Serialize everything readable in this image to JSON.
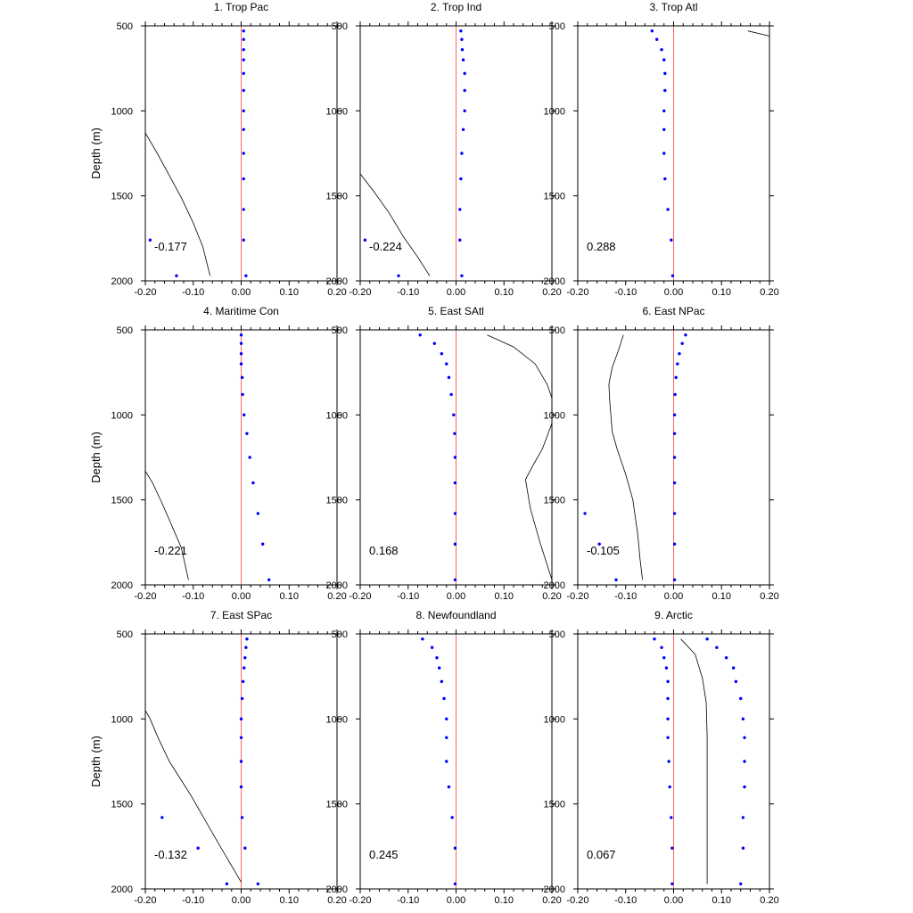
{
  "chart_data": {
    "type": "scatter",
    "ylabel": "Depth (m)",
    "x_ticks": [
      "-0.20",
      "-0.10",
      "0.00",
      "0.10",
      "0.20"
    ],
    "y_ticks": [
      "500",
      "1000",
      "1500",
      "2000"
    ],
    "xlim": [
      -0.2,
      0.2
    ],
    "ylim": [
      500,
      2000
    ],
    "y_inverted": true,
    "colors": {
      "points": "#0000ff",
      "zero_line": "#ff6666",
      "curve": "#000000"
    },
    "panels": [
      {
        "title": "1. Trop Pac",
        "corr": "-0.177",
        "points": [
          [
            0.005,
            530
          ],
          [
            0.005,
            580
          ],
          [
            0.005,
            640
          ],
          [
            0.005,
            700
          ],
          [
            0.005,
            780
          ],
          [
            0.005,
            880
          ],
          [
            0.005,
            1000
          ],
          [
            0.005,
            1110
          ],
          [
            0.005,
            1250
          ],
          [
            0.005,
            1400
          ],
          [
            0.005,
            1580
          ],
          [
            0.005,
            1760
          ],
          [
            0.01,
            1970
          ],
          [
            -0.19,
            1760
          ],
          [
            -0.135,
            1970
          ]
        ],
        "curve": [
          [
            -0.2,
            1130
          ],
          [
            -0.175,
            1250
          ],
          [
            -0.15,
            1380
          ],
          [
            -0.125,
            1510
          ],
          [
            -0.1,
            1660
          ],
          [
            -0.08,
            1800
          ],
          [
            -0.065,
            1970
          ]
        ]
      },
      {
        "title": "2. Trop Ind",
        "corr": "-0.224",
        "points": [
          [
            0.01,
            530
          ],
          [
            0.012,
            580
          ],
          [
            0.013,
            640
          ],
          [
            0.015,
            700
          ],
          [
            0.018,
            780
          ],
          [
            0.018,
            880
          ],
          [
            0.018,
            1000
          ],
          [
            0.015,
            1110
          ],
          [
            0.012,
            1250
          ],
          [
            0.01,
            1400
          ],
          [
            0.008,
            1580
          ],
          [
            0.008,
            1760
          ],
          [
            0.012,
            1970
          ],
          [
            -0.19,
            1760
          ],
          [
            -0.12,
            1970
          ]
        ],
        "curve": [
          [
            -0.2,
            1370
          ],
          [
            -0.17,
            1480
          ],
          [
            -0.14,
            1600
          ],
          [
            -0.11,
            1740
          ],
          [
            -0.08,
            1860
          ],
          [
            -0.055,
            1970
          ]
        ]
      },
      {
        "title": "3. Trop Atl",
        "corr": "0.288",
        "points": [
          [
            -0.045,
            530
          ],
          [
            -0.035,
            580
          ],
          [
            -0.025,
            640
          ],
          [
            -0.02,
            700
          ],
          [
            -0.018,
            780
          ],
          [
            -0.018,
            880
          ],
          [
            -0.02,
            1000
          ],
          [
            -0.02,
            1110
          ],
          [
            -0.02,
            1250
          ],
          [
            -0.018,
            1400
          ],
          [
            -0.012,
            1580
          ],
          [
            -0.005,
            1760
          ],
          [
            -0.002,
            1970
          ]
        ],
        "curve": [
          [
            0.155,
            530
          ],
          [
            0.2,
            560
          ]
        ]
      },
      {
        "title": "4. Maritime Con",
        "corr": "-0.221",
        "points": [
          [
            0,
            530
          ],
          [
            0,
            580
          ],
          [
            0,
            640
          ],
          [
            0,
            700
          ],
          [
            0.002,
            780
          ],
          [
            0.003,
            880
          ],
          [
            0.006,
            1000
          ],
          [
            0.012,
            1110
          ],
          [
            0.018,
            1250
          ],
          [
            0.025,
            1400
          ],
          [
            0.035,
            1580
          ],
          [
            0.045,
            1760
          ],
          [
            0.058,
            1970
          ]
        ],
        "curve": [
          [
            -0.2,
            1330
          ],
          [
            -0.185,
            1400
          ],
          [
            -0.165,
            1520
          ],
          [
            -0.145,
            1650
          ],
          [
            -0.125,
            1780
          ],
          [
            -0.11,
            1970
          ]
        ]
      },
      {
        "title": "5. East SAtl",
        "corr": "0.168",
        "points": [
          [
            -0.075,
            530
          ],
          [
            -0.045,
            580
          ],
          [
            -0.03,
            640
          ],
          [
            -0.02,
            700
          ],
          [
            -0.015,
            780
          ],
          [
            -0.01,
            880
          ],
          [
            -0.005,
            1000
          ],
          [
            -0.003,
            1110
          ],
          [
            -0.002,
            1250
          ],
          [
            -0.002,
            1400
          ],
          [
            -0.002,
            1580
          ],
          [
            -0.002,
            1760
          ],
          [
            -0.002,
            1970
          ]
        ],
        "curve": [
          [
            0.065,
            530
          ],
          [
            0.12,
            600
          ],
          [
            0.165,
            700
          ],
          [
            0.19,
            820
          ],
          [
            0.2,
            900
          ],
          [
            0.2,
            1050
          ],
          [
            0.18,
            1200
          ],
          [
            0.16,
            1300
          ],
          [
            0.145,
            1380
          ],
          [
            0.155,
            1550
          ],
          [
            0.175,
            1750
          ],
          [
            0.2,
            1970
          ]
        ]
      },
      {
        "title": "6. East NPac",
        "corr": "-0.105",
        "points": [
          [
            0.025,
            530
          ],
          [
            0.018,
            580
          ],
          [
            0.012,
            640
          ],
          [
            0.008,
            700
          ],
          [
            0.005,
            780
          ],
          [
            0.003,
            880
          ],
          [
            0.002,
            1000
          ],
          [
            0.002,
            1110
          ],
          [
            0.002,
            1250
          ],
          [
            0.002,
            1400
          ],
          [
            0.002,
            1580
          ],
          [
            0.002,
            1760
          ],
          [
            0.002,
            1970
          ],
          [
            -0.185,
            1580
          ],
          [
            -0.155,
            1760
          ],
          [
            -0.12,
            1970
          ]
        ],
        "curve": [
          [
            -0.105,
            530
          ],
          [
            -0.115,
            620
          ],
          [
            -0.128,
            720
          ],
          [
            -0.135,
            820
          ],
          [
            -0.133,
            930
          ],
          [
            -0.128,
            1100
          ],
          [
            -0.118,
            1200
          ],
          [
            -0.1,
            1350
          ],
          [
            -0.085,
            1500
          ],
          [
            -0.075,
            1700
          ],
          [
            -0.07,
            1850
          ],
          [
            -0.065,
            1970
          ]
        ]
      },
      {
        "title": "7. East SPac",
        "corr": "-0.132",
        "points": [
          [
            0.012,
            530
          ],
          [
            0.01,
            580
          ],
          [
            0.008,
            640
          ],
          [
            0.006,
            700
          ],
          [
            0.004,
            780
          ],
          [
            0.002,
            880
          ],
          [
            0,
            1000
          ],
          [
            0,
            1110
          ],
          [
            0,
            1250
          ],
          [
            0,
            1400
          ],
          [
            0.002,
            1580
          ],
          [
            0.008,
            1760
          ],
          [
            0.035,
            1970
          ],
          [
            -0.165,
            1580
          ],
          [
            -0.09,
            1760
          ],
          [
            -0.03,
            1970
          ]
        ],
        "curve": [
          [
            -0.2,
            950
          ],
          [
            -0.19,
            1000
          ],
          [
            -0.175,
            1100
          ],
          [
            -0.15,
            1250
          ],
          [
            -0.105,
            1450
          ],
          [
            -0.05,
            1720
          ],
          [
            0,
            1960
          ]
        ]
      },
      {
        "title": "8. Newfoundland",
        "corr": "0.245",
        "points": [
          [
            -0.07,
            530
          ],
          [
            -0.05,
            580
          ],
          [
            -0.04,
            640
          ],
          [
            -0.035,
            700
          ],
          [
            -0.03,
            780
          ],
          [
            -0.025,
            880
          ],
          [
            -0.02,
            1000
          ],
          [
            -0.02,
            1110
          ],
          [
            -0.02,
            1250
          ],
          [
            -0.015,
            1400
          ],
          [
            -0.008,
            1580
          ],
          [
            -0.002,
            1760
          ],
          [
            -0.002,
            1970
          ]
        ]
      },
      {
        "title": "9. Arctic",
        "corr": "0.067",
        "points": [
          [
            -0.04,
            530
          ],
          [
            -0.025,
            580
          ],
          [
            -0.02,
            640
          ],
          [
            -0.015,
            700
          ],
          [
            -0.012,
            780
          ],
          [
            -0.012,
            880
          ],
          [
            -0.012,
            1000
          ],
          [
            -0.012,
            1110
          ],
          [
            -0.01,
            1250
          ],
          [
            -0.008,
            1400
          ],
          [
            -0.005,
            1580
          ],
          [
            -0.003,
            1760
          ],
          [
            -0.003,
            1970
          ],
          [
            0.07,
            530
          ],
          [
            0.09,
            580
          ],
          [
            0.11,
            640
          ],
          [
            0.125,
            700
          ],
          [
            0.13,
            780
          ],
          [
            0.14,
            880
          ],
          [
            0.145,
            1000
          ],
          [
            0.148,
            1110
          ],
          [
            0.148,
            1250
          ],
          [
            0.148,
            1400
          ],
          [
            0.145,
            1580
          ],
          [
            0.145,
            1760
          ],
          [
            0.14,
            1970
          ]
        ],
        "curve": [
          [
            0.015,
            530
          ],
          [
            0.045,
            620
          ],
          [
            0.06,
            760
          ],
          [
            0.068,
            900
          ],
          [
            0.07,
            1100
          ],
          [
            0.07,
            1400
          ],
          [
            0.07,
            1700
          ],
          [
            0.07,
            1970
          ]
        ]
      }
    ]
  }
}
